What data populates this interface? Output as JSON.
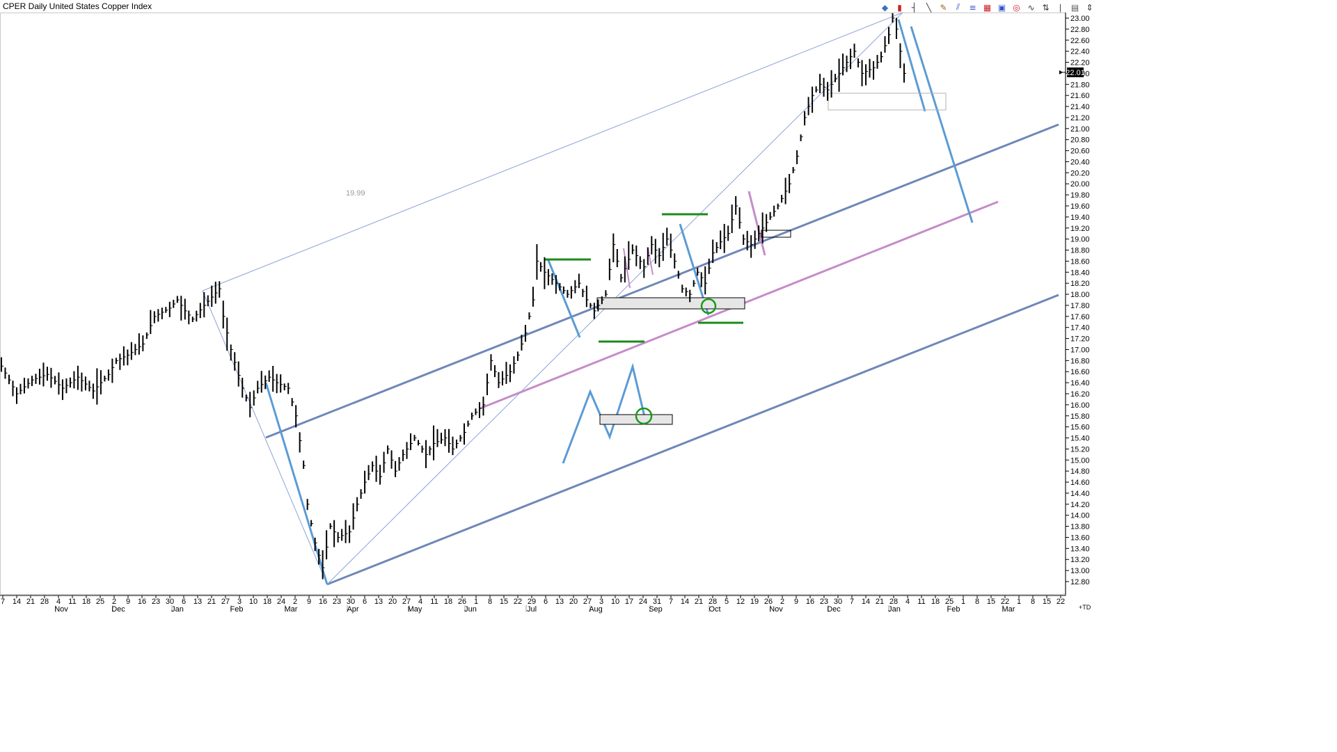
{
  "window": {
    "title": "CPER Daily United States Copper Index"
  },
  "toolbar": [
    {
      "name": "chart-style-icon",
      "glyph": "◆",
      "color": "#3b73b8"
    },
    {
      "name": "candle-icon",
      "glyph": "▮",
      "color": "#cc2222"
    },
    {
      "name": "bar-type-icon",
      "glyph": "┤",
      "color": "#333333"
    },
    {
      "name": "trendline-icon",
      "glyph": "╲",
      "color": "#333333"
    },
    {
      "name": "pencil-icon",
      "glyph": "✎",
      "color": "#a06010"
    },
    {
      "name": "pitchfork-icon",
      "glyph": "⫽",
      "color": "#3355cc"
    },
    {
      "name": "fibonacci-icon",
      "glyph": "≡",
      "color": "#3355cc"
    },
    {
      "name": "grid-icon",
      "glyph": "▦",
      "color": "#cc2222"
    },
    {
      "name": "box-icon",
      "glyph": "▣",
      "color": "#3355cc"
    },
    {
      "name": "circle-icon",
      "glyph": "◎",
      "color": "#cc2244"
    },
    {
      "name": "wave-icon",
      "glyph": "∿",
      "color": "#333333"
    },
    {
      "name": "arrows-icon",
      "glyph": "⇅",
      "color": "#333333"
    },
    {
      "name": "thermometer-icon",
      "glyph": "ǀ",
      "color": "#555555"
    },
    {
      "name": "calendar-icon",
      "glyph": "▤",
      "color": "#555555"
    },
    {
      "name": "expand-icon",
      "glyph": "⇕",
      "color": "#333333"
    }
  ],
  "chart_data": {
    "type": "line",
    "title": "CPER Daily United States Copper Index",
    "y_ticks": [
      "12.80",
      "13.00",
      "13.20",
      "13.40",
      "13.60",
      "13.80",
      "14.00",
      "14.20",
      "14.40",
      "14.60",
      "14.80",
      "15.00",
      "15.20",
      "15.40",
      "15.60",
      "15.80",
      "16.00",
      "16.20",
      "16.40",
      "16.60",
      "16.80",
      "17.00",
      "17.20",
      "17.40",
      "17.60",
      "17.80",
      "18.00",
      "18.20",
      "18.40",
      "18.60",
      "18.80",
      "19.00",
      "19.20",
      "19.40",
      "19.60",
      "19.80",
      "20.00",
      "20.20",
      "20.40",
      "20.60",
      "20.80",
      "21.00",
      "21.20",
      "21.40",
      "21.60",
      "21.80",
      "22.00",
      "22.20",
      "22.40",
      "22.60",
      "22.80",
      "23.00"
    ],
    "ylim": [
      12.8,
      23.0
    ],
    "last_price": "22.01",
    "annotation": "19.99",
    "x_day_ticks": [
      "7",
      "14",
      "21",
      "28",
      "4",
      "11",
      "18",
      "25",
      "2",
      "9",
      "16",
      "23",
      "30",
      "6",
      "13",
      "21",
      "27",
      "3",
      "10",
      "18",
      "24",
      "2",
      "9",
      "16",
      "23",
      "30",
      "6",
      "13",
      "20",
      "27",
      "4",
      "11",
      "18",
      "26",
      "1",
      "8",
      "15",
      "22",
      "29",
      "6",
      "13",
      "20",
      "27",
      "3",
      "10",
      "17",
      "24",
      "31",
      "7",
      "14",
      "21",
      "28",
      "5",
      "12",
      "19",
      "26",
      "2",
      "9",
      "16",
      "23",
      "30",
      "7",
      "14",
      "21",
      "28",
      "4",
      "11",
      "18",
      "25",
      "1",
      "8",
      "15",
      "22",
      "1",
      "8",
      "15",
      "22"
    ],
    "x_months": [
      "Nov",
      "Dec",
      "Jan",
      "Feb",
      "Mar",
      "Apr",
      "May",
      "Jun",
      "Jul",
      "Aug",
      "Sep",
      "Oct",
      "Nov",
      "Dec",
      "Jan",
      "Feb",
      "Mar"
    ],
    "plus_td": "+TD",
    "price_points": [
      [
        0,
        16.7
      ],
      [
        4,
        16.2
      ],
      [
        8,
        16.45
      ],
      [
        12,
        16.55
      ],
      [
        16,
        16.3
      ],
      [
        20,
        16.5
      ],
      [
        24,
        16.25
      ],
      [
        28,
        16.55
      ],
      [
        30,
        16.8
      ],
      [
        33,
        16.9
      ],
      [
        37,
        17.1
      ],
      [
        40,
        17.6
      ],
      [
        44,
        17.75
      ],
      [
        46,
        17.9
      ],
      [
        48,
        17.7
      ],
      [
        50,
        17.55
      ],
      [
        53,
        17.8
      ],
      [
        55,
        17.95
      ],
      [
        57,
        18.1
      ],
      [
        58,
        17.6
      ],
      [
        60,
        17.0
      ],
      [
        63,
        16.3
      ],
      [
        65,
        15.95
      ],
      [
        67,
        16.3
      ],
      [
        70,
        16.5
      ],
      [
        72,
        16.4
      ],
      [
        75,
        16.3
      ],
      [
        77,
        15.8
      ],
      [
        79,
        14.9
      ],
      [
        80,
        14.2
      ],
      [
        82,
        13.5
      ],
      [
        84,
        13.05
      ],
      [
        86,
        13.8
      ],
      [
        88,
        13.6
      ],
      [
        91,
        13.7
      ],
      [
        93,
        14.2
      ],
      [
        95,
        14.6
      ],
      [
        97,
        14.9
      ],
      [
        99,
        14.7
      ],
      [
        101,
        15.2
      ],
      [
        103,
        14.8
      ],
      [
        105,
        15.1
      ],
      [
        108,
        15.4
      ],
      [
        111,
        15.1
      ],
      [
        113,
        15.3
      ],
      [
        116,
        15.4
      ],
      [
        118,
        15.2
      ],
      [
        121,
        15.5
      ],
      [
        123,
        15.8
      ],
      [
        126,
        16.0
      ],
      [
        128,
        16.8
      ],
      [
        130,
        16.4
      ],
      [
        133,
        16.6
      ],
      [
        135,
        16.9
      ],
      [
        137,
        17.3
      ],
      [
        139,
        17.9
      ],
      [
        140,
        18.6
      ],
      [
        142,
        18.4
      ],
      [
        145,
        18.2
      ],
      [
        148,
        18.0
      ],
      [
        151,
        18.2
      ],
      [
        153,
        17.9
      ],
      [
        155,
        17.7
      ],
      [
        158,
        18.0
      ],
      [
        160,
        18.9
      ],
      [
        162,
        18.3
      ],
      [
        165,
        18.8
      ],
      [
        168,
        18.5
      ],
      [
        170,
        18.9
      ],
      [
        172,
        18.7
      ],
      [
        174,
        19.0
      ],
      [
        176,
        18.6
      ],
      [
        178,
        18.1
      ],
      [
        180,
        18.0
      ],
      [
        182,
        18.4
      ],
      [
        184,
        18.2
      ],
      [
        186,
        18.75
      ],
      [
        188,
        18.95
      ],
      [
        190,
        19.1
      ],
      [
        192,
        19.6
      ],
      [
        194,
        19.0
      ],
      [
        196,
        18.9
      ],
      [
        198,
        19.1
      ],
      [
        200,
        19.3
      ],
      [
        203,
        19.6
      ],
      [
        206,
        20.0
      ],
      [
        208,
        20.5
      ],
      [
        210,
        21.2
      ],
      [
        212,
        21.6
      ],
      [
        214,
        21.8
      ],
      [
        216,
        21.7
      ],
      [
        218,
        21.9
      ],
      [
        220,
        22.1
      ],
      [
        223,
        22.4
      ],
      [
        225,
        22.0
      ],
      [
        228,
        22.1
      ],
      [
        230,
        22.3
      ],
      [
        232,
        22.7
      ],
      [
        233,
        23.0
      ],
      [
        234,
        22.8
      ],
      [
        236,
        22.0
      ]
    ]
  }
}
